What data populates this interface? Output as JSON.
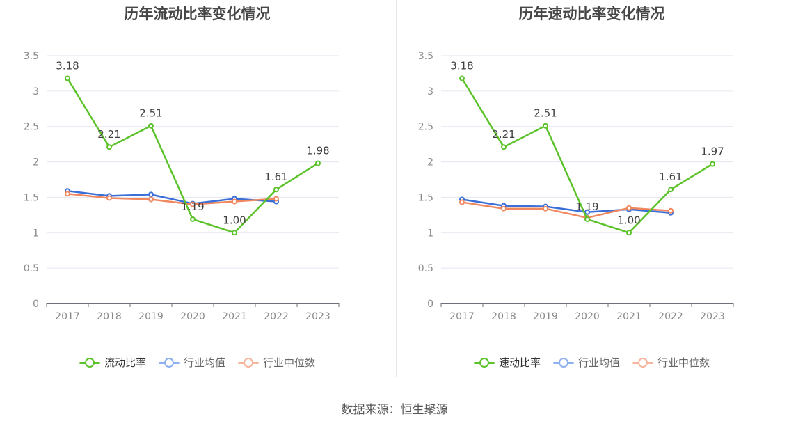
{
  "source": "数据来源：恒生聚源",
  "chart_data": [
    {
      "type": "line",
      "title": "历年流动比率变化情况",
      "x": [
        "2017",
        "2018",
        "2019",
        "2020",
        "2021",
        "2022",
        "2023"
      ],
      "ylim": [
        0,
        3.5
      ],
      "yticks": [
        "0",
        "0.5",
        "1",
        "1.5",
        "2",
        "2.5",
        "3",
        "3.5"
      ],
      "grid": true,
      "legend_position": "bottom",
      "series": [
        {
          "name": "流动比率",
          "color": "#5cc22a",
          "values": [
            3.18,
            2.21,
            2.51,
            1.19,
            1.0,
            1.61,
            1.98
          ],
          "labels": [
            "3.18",
            "2.21",
            "2.51",
            "1.19",
            "1.00",
            "1.61",
            "1.98"
          ]
        },
        {
          "name": "行业均值",
          "color": "#3a6fd8",
          "legend_color": "#8fb0ef",
          "values": [
            1.59,
            1.52,
            1.54,
            1.41,
            1.48,
            1.44,
            null
          ]
        },
        {
          "name": "行业中位数",
          "color": "#f0875f",
          "legend_color": "#f6b59c",
          "values": [
            1.55,
            1.49,
            1.47,
            1.4,
            1.44,
            1.48,
            null
          ]
        }
      ]
    },
    {
      "type": "line",
      "title": "历年速动比率变化情况",
      "x": [
        "2017",
        "2018",
        "2019",
        "2020",
        "2021",
        "2022",
        "2023"
      ],
      "ylim": [
        0,
        3.5
      ],
      "yticks": [
        "0",
        "0.5",
        "1",
        "1.5",
        "2",
        "2.5",
        "3",
        "3.5"
      ],
      "grid": true,
      "legend_position": "bottom",
      "series": [
        {
          "name": "速动比率",
          "color": "#5cc22a",
          "values": [
            3.18,
            2.21,
            2.51,
            1.19,
            1.0,
            1.61,
            1.97
          ],
          "labels": [
            "3.18",
            "2.21",
            "2.51",
            "1.19",
            "1.00",
            "1.61",
            "1.97"
          ]
        },
        {
          "name": "行业均值",
          "color": "#3a6fd8",
          "legend_color": "#8fb0ef",
          "values": [
            1.47,
            1.38,
            1.37,
            1.29,
            1.33,
            1.28,
            null
          ]
        },
        {
          "name": "行业中位数",
          "color": "#f0875f",
          "legend_color": "#f6b59c",
          "values": [
            1.43,
            1.34,
            1.34,
            1.21,
            1.35,
            1.31,
            null
          ]
        }
      ]
    }
  ]
}
